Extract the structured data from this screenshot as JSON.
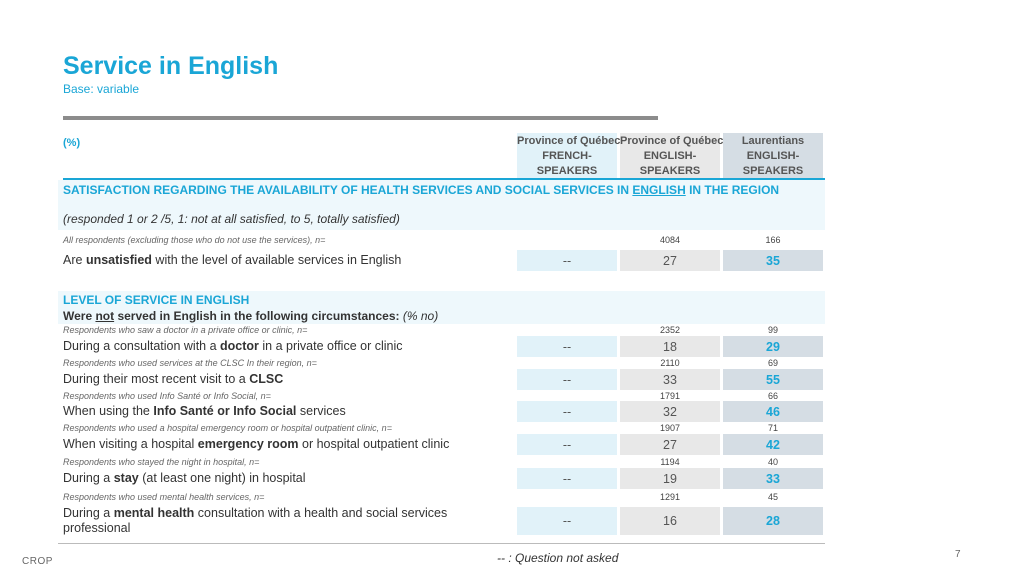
{
  "header": {
    "title": "Service in English",
    "subtitle": "Base: variable",
    "pct_label": "(%)"
  },
  "columns": [
    {
      "line1": "Province of Québec",
      "line2": "FRENCH-",
      "line3": "SPEAKERS"
    },
    {
      "line1": "Province of Québec",
      "line2": "ENGLISH-",
      "line3": "SPEAKERS"
    },
    {
      "line1": "Laurentians",
      "line2": "ENGLISH-",
      "line3": "SPEAKERS"
    }
  ],
  "section1": {
    "title_before": "SATISFACTION REGARDING THE AVAILABILITY OF HEALTH SERVICES AND SOCIAL SERVICES IN ",
    "title_underlined": "ENGLISH",
    "title_after": " IN THE REGION",
    "scale_note": "(responded 1 or 2 /5, 1: not at all satisfied, to 5, totally satisfied)",
    "base_note": "All respondents (excluding those who do not use the services), n=",
    "n_values": [
      "4084",
      "166"
    ],
    "row": {
      "label_before": "Are ",
      "label_bold": "unsatisfied",
      "label_after": " with the level of available services in English",
      "values": [
        "--",
        "27",
        "35"
      ]
    }
  },
  "section2": {
    "title": "LEVEL OF SERVICE IN ENGLISH",
    "sub_before": "Were ",
    "sub_underlined": "not",
    "sub_after": " served in English in the following circumstances:",
    "sub_italic": " (% no)",
    "rows": [
      {
        "note": "Respondents who saw a doctor in a private office or clinic, n=",
        "n": [
          "2352",
          "99"
        ],
        "label_before": "During a consultation with a ",
        "label_bold": "doctor",
        "label_after": " in a private office or clinic",
        "values": [
          "--",
          "18",
          "29"
        ]
      },
      {
        "note": "Respondents who used services at the CLSC In their region, n=",
        "n": [
          "2110",
          "69"
        ],
        "label_before": "During their most recent visit to a ",
        "label_bold": "CLSC",
        "label_after": "",
        "values": [
          "--",
          "33",
          "55"
        ]
      },
      {
        "note": "Respondents who used Info Santé or Info Social, n=",
        "n": [
          "1791",
          "66"
        ],
        "label_before": "When using the ",
        "label_bold": "Info Santé or Info Social",
        "label_after": " services",
        "values": [
          "--",
          "32",
          "46"
        ]
      },
      {
        "note": "Respondents who used a hospital emergency room or hospital outpatient clinic, n=",
        "n": [
          "1907",
          "71"
        ],
        "label_before": "When visiting a hospital ",
        "label_bold": "emergency room",
        "label_after": " or hospital outpatient clinic",
        "values": [
          "--",
          "27",
          "42"
        ]
      },
      {
        "note": "Respondents who stayed the night in hospital, n=",
        "n": [
          "1194",
          "40"
        ],
        "label_before": "During a ",
        "label_bold": "stay",
        "label_after": " (at least one night) in hospital",
        "values": [
          "--",
          "19",
          "33"
        ]
      },
      {
        "note": "Respondents who used mental health services, n=",
        "n": [
          "1291",
          "45"
        ],
        "label_before": "During a ",
        "label_bold": "mental health",
        "label_after": " consultation with a health and social services professional",
        "values": [
          "--",
          "16",
          "28"
        ]
      }
    ]
  },
  "footer": {
    "footnote": "-- : Question not asked",
    "logo": "CROP",
    "page": "7"
  }
}
